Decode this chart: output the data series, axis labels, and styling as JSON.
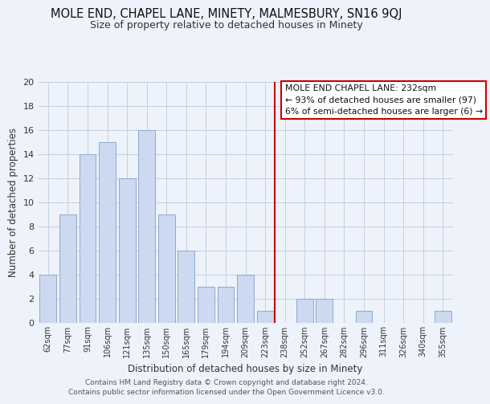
{
  "title": "MOLE END, CHAPEL LANE, MINETY, MALMESBURY, SN16 9QJ",
  "subtitle": "Size of property relative to detached houses in Minety",
  "xlabel": "Distribution of detached houses by size in Minety",
  "ylabel": "Number of detached properties",
  "bar_labels": [
    "62sqm",
    "77sqm",
    "91sqm",
    "106sqm",
    "121sqm",
    "135sqm",
    "150sqm",
    "165sqm",
    "179sqm",
    "194sqm",
    "209sqm",
    "223sqm",
    "238sqm",
    "252sqm",
    "267sqm",
    "282sqm",
    "296sqm",
    "311sqm",
    "326sqm",
    "340sqm",
    "355sqm"
  ],
  "bar_values": [
    4,
    9,
    14,
    15,
    12,
    16,
    9,
    6,
    3,
    3,
    4,
    1,
    0,
    2,
    2,
    0,
    1,
    0,
    0,
    0,
    1
  ],
  "bar_color": "#ccd9f0",
  "bar_edge_color": "#8aabcf",
  "grid_color": "#c5cfdf",
  "vline_color": "#cc0000",
  "ylim": [
    0,
    20
  ],
  "yticks": [
    0,
    2,
    4,
    6,
    8,
    10,
    12,
    14,
    16,
    18,
    20
  ],
  "legend_title": "MOLE END CHAPEL LANE: 232sqm",
  "legend_line1": "← 93% of detached houses are smaller (97)",
  "legend_line2": "6% of semi-detached houses are larger (6) →",
  "footnote1": "Contains HM Land Registry data © Crown copyright and database right 2024.",
  "footnote2": "Contains public sector information licensed under the Open Government Licence v3.0.",
  "background_color": "#eef2fa"
}
